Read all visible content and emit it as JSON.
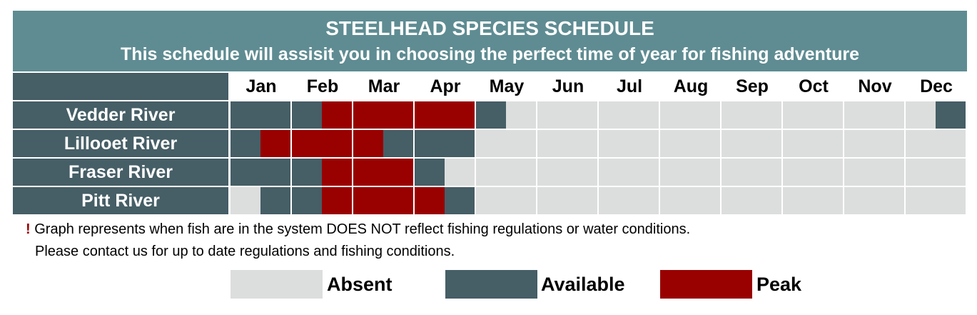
{
  "header": {
    "title": "STEELHEAD SPECIES SCHEDULE",
    "subtitle": "This schedule will assisit you in choosing the perfect time of year for fishing adventure"
  },
  "chart_data": {
    "type": "heatmap",
    "title": "STEELHEAD SPECIES SCHEDULE",
    "categories": [
      "Jan",
      "Feb",
      "Mar",
      "Apr",
      "May",
      "Jun",
      "Jul",
      "Aug",
      "Sep",
      "Oct",
      "Nov",
      "Dec"
    ],
    "resolution": "half-month",
    "status_codes": {
      "0": "Absent",
      "1": "Available",
      "2": "Peak"
    },
    "rows": [
      {
        "name": "Vedder River",
        "values": [
          1,
          1,
          1,
          2,
          2,
          2,
          2,
          2,
          1,
          0,
          0,
          0,
          0,
          0,
          0,
          0,
          0,
          0,
          0,
          0,
          0,
          0,
          0,
          1
        ]
      },
      {
        "name": "Lillooet River",
        "values": [
          1,
          2,
          2,
          2,
          2,
          1,
          1,
          1,
          0,
          0,
          0,
          0,
          0,
          0,
          0,
          0,
          0,
          0,
          0,
          0,
          0,
          0,
          0,
          0
        ]
      },
      {
        "name": "Fraser River",
        "values": [
          1,
          1,
          1,
          2,
          2,
          2,
          1,
          0,
          0,
          0,
          0,
          0,
          0,
          0,
          0,
          0,
          0,
          0,
          0,
          0,
          0,
          0,
          0,
          0
        ]
      },
      {
        "name": "Pitt River",
        "values": [
          0,
          1,
          1,
          2,
          2,
          2,
          2,
          1,
          0,
          0,
          0,
          0,
          0,
          0,
          0,
          0,
          0,
          0,
          0,
          0,
          0,
          0,
          0,
          0
        ]
      }
    ],
    "colors": {
      "Absent": "#dcdedd",
      "Available": "#465e66",
      "Peak": "#990000"
    }
  },
  "notes": {
    "mark": "!",
    "line1": "Graph represents when fish are in the system DOES NOT reflect fishing regulations or water conditions.",
    "line2": "Please contact us for up to date regulations and fishing conditions."
  },
  "legend": [
    {
      "label": "Absent"
    },
    {
      "label": "Available"
    },
    {
      "label": "Peak"
    }
  ]
}
